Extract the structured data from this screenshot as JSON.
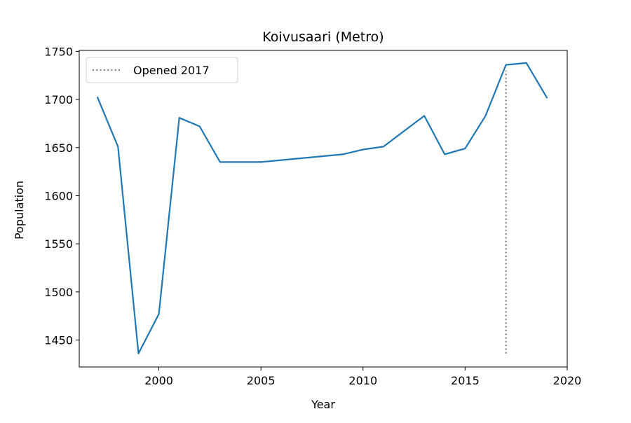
{
  "chart_data": {
    "type": "line",
    "title": "Koivusaari (Metro)",
    "xlabel": "Year",
    "ylabel": "Population",
    "xlim": [
      1996.1,
      2020.0
    ],
    "ylim": [
      1422,
      1751
    ],
    "x_ticks": [
      2000,
      2005,
      2010,
      2015,
      2020
    ],
    "y_ticks": [
      1450,
      1500,
      1550,
      1600,
      1650,
      1700,
      1750
    ],
    "grid": false,
    "legend": {
      "position": "top-left",
      "entries": [
        "Opened 2017"
      ]
    },
    "series": [
      {
        "name": "",
        "color": "#1f77b4",
        "x": [
          1997,
          1998,
          1999,
          2000,
          2001,
          2002,
          2003,
          2004,
          2005,
          2006,
          2007,
          2008,
          2009,
          2010,
          2011,
          2012,
          2013,
          2014,
          2015,
          2016,
          2017,
          2018,
          2019
        ],
        "y": [
          1702,
          1651,
          1436,
          1477,
          1681,
          1672,
          1635,
          1635,
          1635,
          1637,
          1639,
          1641,
          1643,
          1648,
          1651,
          1667,
          1683,
          1643,
          1649,
          1683,
          1736,
          1738,
          1702
        ]
      }
    ],
    "annotations": [
      {
        "type": "vline",
        "label": "Opened 2017",
        "x": 2017,
        "y_range": [
          1436,
          1730
        ],
        "color": "#808080",
        "style": "dotted"
      }
    ]
  }
}
